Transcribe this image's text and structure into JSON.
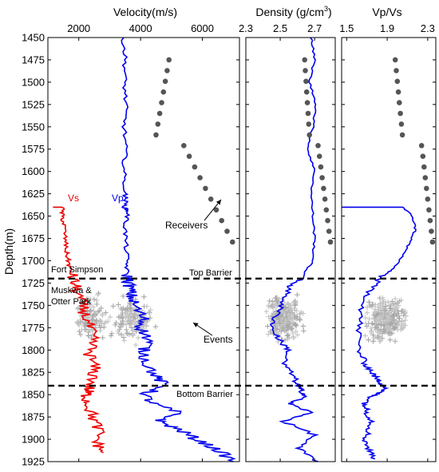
{
  "chart_data": [
    {
      "type": "line",
      "panel": "velocity",
      "title": "Velocity(m/s)",
      "ylabel": "Depth(m)",
      "xlim": [
        1000,
        7200
      ],
      "ylim": [
        1450,
        1925
      ],
      "xticks": [
        2000,
        4000,
        6000
      ],
      "yticks": [
        1450,
        1475,
        1500,
        1525,
        1550,
        1575,
        1600,
        1625,
        1650,
        1675,
        1700,
        1725,
        1750,
        1775,
        1800,
        1825,
        1850,
        1875,
        1900,
        1925
      ],
      "series": [
        {
          "name": "Vp",
          "color": "#0000ee",
          "x": [
            3450,
            3500,
            3480,
            3520,
            3470,
            3510,
            3460,
            3500,
            3530,
            3480,
            3600,
            3500,
            3520,
            3560,
            3550,
            3600,
            3650,
            3700,
            3800,
            4100,
            4000,
            4300,
            4100,
            4200,
            4500,
            4800,
            4100,
            4400,
            5200,
            4600,
            5300,
            5800,
            6500,
            7000
          ],
          "y": [
            1450,
            1475,
            1500,
            1525,
            1550,
            1575,
            1600,
            1625,
            1630,
            1640,
            1645,
            1660,
            1680,
            1700,
            1715,
            1722,
            1730,
            1740,
            1750,
            1765,
            1775,
            1790,
            1800,
            1815,
            1830,
            1840,
            1850,
            1860,
            1870,
            1880,
            1890,
            1900,
            1912,
            1925
          ]
        },
        {
          "name": "Vs",
          "color": "#ee0000",
          "x": [
            1200,
            1460,
            1460,
            1520,
            1560,
            1600,
            1660,
            1720,
            1800,
            1900,
            2050,
            2200,
            2350,
            2450,
            2350,
            2500,
            2450,
            2300,
            2250,
            2300,
            2450,
            2650,
            2600,
            2800
          ],
          "y": [
            1640,
            1640,
            1650,
            1660,
            1675,
            1690,
            1700,
            1710,
            1720,
            1730,
            1745,
            1760,
            1775,
            1790,
            1805,
            1820,
            1835,
            1845,
            1850,
            1860,
            1875,
            1890,
            1905,
            1915
          ]
        }
      ],
      "annotations": [
        "Fort Simpson",
        "Muskwa & Otter Park",
        "Vs",
        "Vp",
        "Receivers",
        "Events",
        "Top Barrier",
        "Bottom Barrier"
      ]
    },
    {
      "type": "line",
      "panel": "density",
      "title": "Density (g/cm3)",
      "xlim": [
        2.3,
        2.82
      ],
      "ylim": [
        1450,
        1925
      ],
      "xticks": [
        2.3,
        2.5,
        2.7
      ],
      "series": [
        {
          "name": "",
          "color": "#0000ee",
          "x": [
            2.68,
            2.7,
            2.67,
            2.71,
            2.69,
            2.66,
            2.7,
            2.68,
            2.69,
            2.7,
            2.69,
            2.62,
            2.55,
            2.52,
            2.48,
            2.45,
            2.5,
            2.55,
            2.52,
            2.58,
            2.6,
            2.62,
            2.65,
            2.55,
            2.68,
            2.52,
            2.7,
            2.6,
            2.72
          ],
          "y": [
            1450,
            1475,
            1500,
            1525,
            1550,
            1575,
            1600,
            1625,
            1650,
            1675,
            1700,
            1720,
            1730,
            1745,
            1760,
            1775,
            1790,
            1800,
            1815,
            1830,
            1840,
            1845,
            1852,
            1860,
            1870,
            1880,
            1895,
            1910,
            1925
          ]
        }
      ]
    },
    {
      "type": "line",
      "panel": "vpvs",
      "title": "Vp/Vs",
      "xlim": [
        1.45,
        2.38
      ],
      "ylim": [
        1450,
        1925
      ],
      "xticks": [
        1.5,
        1.9,
        2.3
      ],
      "series": [
        {
          "name": "",
          "color": "#0000ee",
          "x": [
            1.45,
            2.05,
            2.15,
            2.18,
            2.12,
            2.05,
            1.95,
            1.82,
            1.72,
            1.65,
            1.62,
            1.62,
            1.68,
            1.75,
            1.8,
            1.85,
            1.88,
            1.82,
            1.75,
            1.68,
            1.7,
            1.75,
            1.72,
            1.68,
            1.72,
            1.78
          ],
          "y": [
            1640,
            1640,
            1650,
            1665,
            1680,
            1695,
            1710,
            1720,
            1735,
            1755,
            1775,
            1800,
            1815,
            1825,
            1833,
            1838,
            1842,
            1848,
            1852,
            1860,
            1870,
            1880,
            1890,
            1900,
            1912,
            1922
          ]
        }
      ]
    }
  ],
  "receivers": [
    1475,
    1487,
    1499,
    1511,
    1523,
    1535,
    1547,
    1559,
    1571,
    1583,
    1595,
    1607,
    1619,
    1631,
    1643,
    1655,
    1667,
    1679
  ],
  "receiver_velocity_x": [
    4600,
    4700,
    4800,
    4900,
    5000,
    5100,
    5200,
    5300,
    5400,
    5500,
    5600,
    5700,
    5800,
    5900,
    6000,
    6100,
    6200,
    6300
  ],
  "barriers": {
    "top": 1720,
    "bottom": 1840
  },
  "colors": {
    "vp": "#0000ee",
    "vs": "#ee0000",
    "receiver": "#555555",
    "event": "#999999",
    "barrier": "#000000"
  },
  "labels": {
    "velocity_title": "Velocity(m/s)",
    "density_title_main": "Density (g/cm",
    "density_title_sup": "3",
    "density_title_end": ")",
    "vpvs_title": "Vp/Vs",
    "ylabel": "Depth(m)",
    "vs": "Vs",
    "vp": "Vp",
    "receivers": "Receivers",
    "events": "Events",
    "fort_simpson": "Fort Simpson",
    "muskwa_1": "Muskwa &",
    "muskwa_2": "Otter Park",
    "top_barrier": "Top Barrier",
    "bottom_barrier": "Bottom Barrier",
    "vel_ticks": [
      "2000",
      "4000",
      "6000"
    ],
    "den_ticks": [
      "2.3",
      "2.5",
      "2.7"
    ],
    "vpvs_ticks": [
      "1.5",
      "1.9",
      "2.3"
    ]
  }
}
